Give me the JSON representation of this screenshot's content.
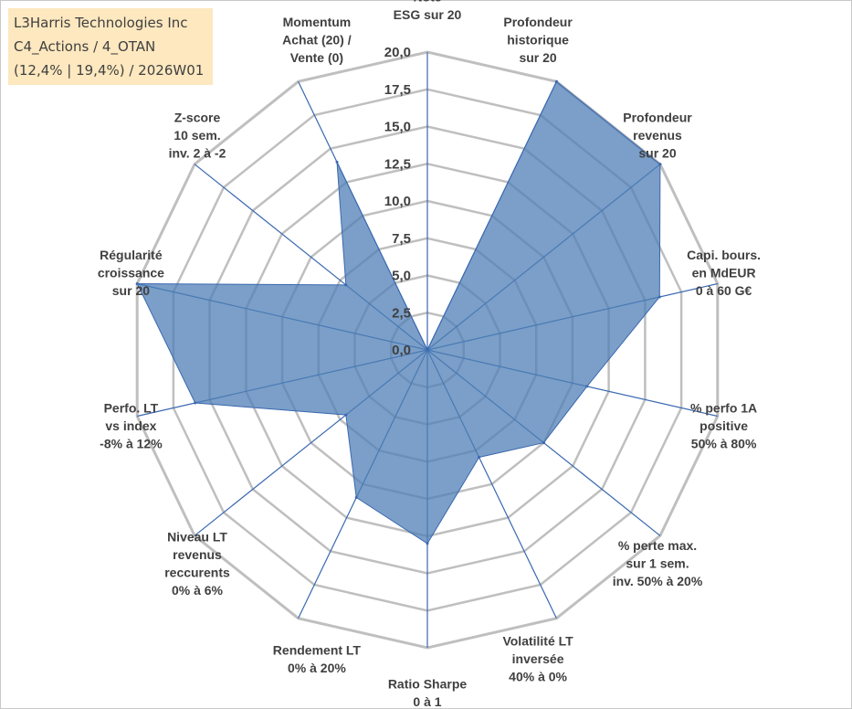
{
  "header": {
    "line1": "L3Harris Technologies Inc",
    "line2": "C4_Actions / 4_OTAN",
    "line3": "(12,4% | 19,4%) / 2026W01"
  },
  "colors": {
    "fill": "#4f7fb5",
    "spoke": "#3a68b0",
    "grid": "#bfbfbf",
    "header_bg": "#fde8bf",
    "text": "#404040"
  },
  "chart_data": {
    "type": "radar",
    "title": "",
    "rmin": 0,
    "rmax": 20,
    "ticks": [
      "0,0",
      "2,5",
      "5,0",
      "7,5",
      "10,0",
      "12,5",
      "15,0",
      "17,5",
      "20,0"
    ],
    "axes": [
      {
        "label": [
          "Note",
          "ESG sur 20"
        ],
        "value": 0
      },
      {
        "label": [
          "Profondeur",
          "historique",
          "sur 20"
        ],
        "value": 20
      },
      {
        "label": [
          "Profondeur",
          "revenus",
          "sur 20"
        ],
        "value": 20
      },
      {
        "label": [
          "Capi. bours.",
          "en MdEUR",
          "0 à 60 G€"
        ],
        "value": 16
      },
      {
        "label": [
          "% perfo 1A",
          "positive",
          "50% à 80%"
        ],
        "value": 11
      },
      {
        "label": [
          "% perte max.",
          "sur 1 sem.",
          "inv. 50% à 20%"
        ],
        "value": 10
      },
      {
        "label": [
          "Volatilité LT",
          "inversée",
          "40% à 0%"
        ],
        "value": 8
      },
      {
        "label": [
          "Ratio Sharpe",
          "0 à 1"
        ],
        "value": 13
      },
      {
        "label": [
          "Rendement LT",
          "0% à 20%"
        ],
        "value": 11
      },
      {
        "label": [
          "Niveau LT",
          "revenus",
          "reccurents",
          "0% à 6%"
        ],
        "value": 7
      },
      {
        "label": [
          "Perfo. LT",
          "vs index",
          "-8% à 12%"
        ],
        "value": 16
      },
      {
        "label": [
          "Régularité",
          "croissance",
          "sur 20"
        ],
        "value": 20
      },
      {
        "label": [
          "Z-score",
          "10 sem.",
          "inv. 2 à -2"
        ],
        "value": 7
      },
      {
        "label": [
          "Momentum",
          "Achat (20) /",
          "Vente (0)"
        ],
        "value": 14
      }
    ]
  }
}
